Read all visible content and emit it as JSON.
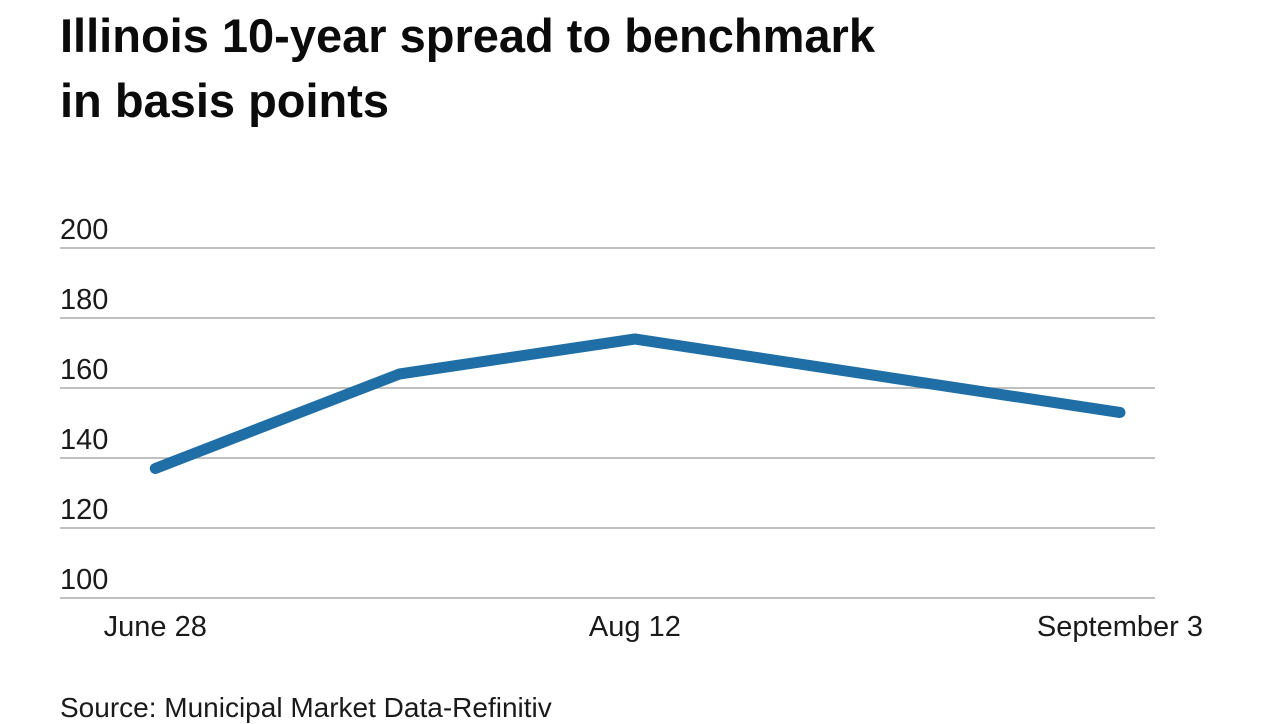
{
  "header": {
    "title_line1": "Illinois 10-year spread to benchmark",
    "title_line2": "in basis points"
  },
  "footer": {
    "source": "Source: Municipal Market Data-Refinitiv"
  },
  "chart_data": {
    "type": "line",
    "title": "Illinois 10-year spread to benchmark in basis points",
    "ylabel": "basis points",
    "ylim": [
      100,
      200
    ],
    "y_ticks": [
      200,
      180,
      160,
      140,
      120,
      100
    ],
    "grid": true,
    "legend": "none",
    "line_color": "#1f6ea5",
    "grid_color": "#ababab",
    "series": [
      {
        "name": "Illinois 10-year spread to benchmark (bp)",
        "points": [
          {
            "x": 0.087,
            "label": "June 28",
            "value": 137
          },
          {
            "x": 0.31,
            "label": "",
            "value": 164
          },
          {
            "x": 0.525,
            "label": "Aug 12",
            "value": 174
          },
          {
            "x": 0.968,
            "label": "September 3",
            "value": 153
          }
        ]
      }
    ],
    "x_ticks": [
      {
        "pos": 0.087,
        "label": "June 28"
      },
      {
        "pos": 0.525,
        "label": "Aug 12"
      },
      {
        "pos": 0.968,
        "label": "September 3"
      }
    ]
  }
}
